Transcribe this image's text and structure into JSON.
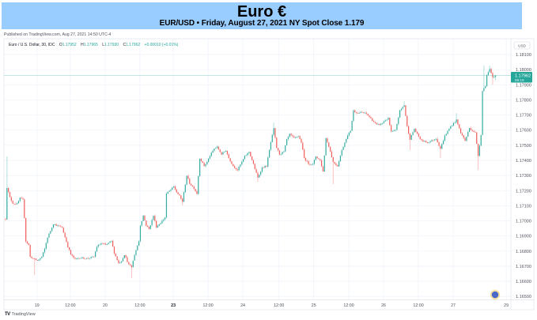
{
  "banner": {
    "title": "Euro €",
    "subtitle": "EUR/USD • Friday, August 27, 2021 NY Spot Close 1.179",
    "bg_color": "#99ccff"
  },
  "published": "Published on TradingView.com, Aug 27, 2021 14:50 UTC-4",
  "legend": {
    "symbol": "Euro / U.S. Dollar, 30, IDC",
    "o_label": "O",
    "o": "1.17952",
    "h_label": "H",
    "h": "1.17965",
    "l_label": "L",
    "l": "1.17930",
    "c_label": "C",
    "c": "1.17962",
    "change": "+0.00010 (+0.01%)"
  },
  "price_axis": {
    "currency": "USD",
    "last_price": "1.17962",
    "countdown": "09:19"
  },
  "footer": {
    "logo_glyph": "TV",
    "logo_text": "TradingView"
  },
  "icons": {
    "realtime_button": "blue-dot-icon"
  },
  "colors": {
    "up": "#26a69a",
    "down": "#ef5350",
    "grid": "#f0f3fa",
    "border": "#e0e3eb",
    "axis_text": "#50535e",
    "banner": "#99ccff"
  },
  "chart_data": {
    "type": "candlestick",
    "title": "Euro €",
    "subtitle": "EUR/USD • Friday, August 27, 2021 NY Spot Close 1.179",
    "symbol": "EUR/USD",
    "interval": "30",
    "xlabel": "",
    "ylabel": "USD",
    "ylim": [
      1.1648,
      1.18205
    ],
    "xlim": [
      -1.09,
      348.6
    ],
    "grid": true,
    "legend_position": "top-left",
    "candle_count": 339,
    "noise": 0.0001,
    "wick": 0.0001,
    "seed": 12345,
    "price_ticks": [
      "1.18100",
      "1.18000",
      "1.17900",
      "1.17800",
      "1.17700",
      "1.17600",
      "1.17500",
      "1.17400",
      "1.17300",
      "1.17200",
      "1.17100",
      "1.17000",
      "1.16900",
      "1.16800",
      "1.16700",
      "1.16600",
      "1.16500"
    ],
    "time_ticks": [
      {
        "label": "19",
        "index": 21.7,
        "bold": false
      },
      {
        "label": "12:00",
        "index": 44.7,
        "bold": false
      },
      {
        "label": "20",
        "index": 68.7,
        "bold": false
      },
      {
        "label": "12:00",
        "index": 92.7,
        "bold": false
      },
      {
        "label": "23",
        "index": 115.7,
        "bold": true
      },
      {
        "label": "12:00",
        "index": 139.7,
        "bold": false
      },
      {
        "label": "24",
        "index": 163.7,
        "bold": false
      },
      {
        "label": "12:00",
        "index": 188.6,
        "bold": false
      },
      {
        "label": "25",
        "index": 212.6,
        "bold": false
      },
      {
        "label": "12:00",
        "index": 236.8,
        "bold": false
      },
      {
        "label": "26",
        "index": 260.8,
        "bold": false
      },
      {
        "label": "12:00",
        "index": 284.8,
        "bold": false
      },
      {
        "label": "27",
        "index": 308.8,
        "bold": false
      },
      {
        "label": "29",
        "index": 345.4,
        "bold": false
      }
    ],
    "path": [
      [
        0,
        1.17013
      ],
      [
        1,
        1.17222
      ],
      [
        3,
        1.17154
      ],
      [
        5,
        1.17117
      ],
      [
        8,
        1.17112
      ],
      [
        10,
        1.17149
      ],
      [
        12,
        1.17138
      ],
      [
        13,
        1.17023
      ],
      [
        14,
        1.16866
      ],
      [
        16,
        1.1684
      ],
      [
        17,
        1.16762
      ],
      [
        20,
        1.16746
      ],
      [
        22,
        1.16736
      ],
      [
        25,
        1.16762
      ],
      [
        27,
        1.16814
      ],
      [
        29,
        1.16892
      ],
      [
        31,
        1.16934
      ],
      [
        33,
        1.16981
      ],
      [
        35,
        1.16971
      ],
      [
        39,
        1.16955
      ],
      [
        41,
        1.16892
      ],
      [
        43,
        1.1683
      ],
      [
        45,
        1.16777
      ],
      [
        48,
        1.16746
      ],
      [
        51,
        1.16757
      ],
      [
        56,
        1.16751
      ],
      [
        61,
        1.16762
      ],
      [
        63,
        1.1683
      ],
      [
        66,
        1.16851
      ],
      [
        69,
        1.1684
      ],
      [
        73,
        1.16866
      ],
      [
        75,
        1.16788
      ],
      [
        78,
        1.1672
      ],
      [
        80,
        1.16736
      ],
      [
        82,
        1.16777
      ],
      [
        85,
        1.1671
      ],
      [
        87,
        1.16694
      ],
      [
        89,
        1.16777
      ],
      [
        92,
        1.16866
      ],
      [
        93,
        1.16971
      ],
      [
        95,
        1.17034
      ],
      [
        97,
        1.16971
      ],
      [
        99,
        1.16945
      ],
      [
        102,
        1.17034
      ],
      [
        104,
        1.1696
      ],
      [
        107,
        1.16987
      ],
      [
        110,
        1.17023
      ],
      [
        111,
        1.1718
      ],
      [
        114,
        1.17206
      ],
      [
        116,
        1.17227
      ],
      [
        118,
        1.1719
      ],
      [
        120,
        1.17164
      ],
      [
        122,
        1.17128
      ],
      [
        125,
        1.173
      ],
      [
        127,
        1.17248
      ],
      [
        130,
        1.17216
      ],
      [
        132,
        1.1718
      ],
      [
        134,
        1.17415
      ],
      [
        137,
        1.17363
      ],
      [
        139,
        1.17389
      ],
      [
        141,
        1.17431
      ],
      [
        144,
        1.17478
      ],
      [
        146,
        1.17488
      ],
      [
        149,
        1.17441
      ],
      [
        152,
        1.17467
      ],
      [
        154,
        1.17415
      ],
      [
        157,
        1.17363
      ],
      [
        160,
        1.17337
      ],
      [
        163,
        1.17389
      ],
      [
        165,
        1.17426
      ],
      [
        168,
        1.17457
      ],
      [
        171,
        1.17374
      ],
      [
        174,
        1.17285
      ],
      [
        177,
        1.17352
      ],
      [
        180,
        1.17363
      ],
      [
        183,
        1.1752
      ],
      [
        185,
        1.17609
      ],
      [
        187,
        1.17483
      ],
      [
        189,
        1.17441
      ],
      [
        192,
        1.17457
      ],
      [
        194,
        1.17535
      ],
      [
        196,
        1.17572
      ],
      [
        199,
        1.17546
      ],
      [
        202,
        1.17562
      ],
      [
        204,
        1.1752
      ],
      [
        206,
        1.17415
      ],
      [
        209,
        1.17379
      ],
      [
        212,
        1.17374
      ],
      [
        214,
        1.17426
      ],
      [
        217,
        1.174
      ],
      [
        219,
        1.17326
      ],
      [
        221,
        1.17546
      ],
      [
        223,
        1.17494
      ],
      [
        226,
        1.17389
      ],
      [
        229,
        1.17363
      ],
      [
        232,
        1.17467
      ],
      [
        235,
        1.17546
      ],
      [
        238,
        1.17598
      ],
      [
        240,
        1.17729
      ],
      [
        243,
        1.17713
      ],
      [
        246,
        1.17718
      ],
      [
        249,
        1.17708
      ],
      [
        253,
        1.17666
      ],
      [
        256,
        1.17635
      ],
      [
        259,
        1.1764
      ],
      [
        262,
        1.17666
      ],
      [
        264,
        1.17677
      ],
      [
        266,
        1.17588
      ],
      [
        269,
        1.17598
      ],
      [
        272,
        1.17729
      ],
      [
        275,
        1.17766
      ],
      [
        277,
        1.17624
      ],
      [
        279,
        1.17541
      ],
      [
        282,
        1.17609
      ],
      [
        284,
        1.17572
      ],
      [
        287,
        1.1753
      ],
      [
        291,
        1.1752
      ],
      [
        294,
        1.1753
      ],
      [
        297,
        1.17546
      ],
      [
        300,
        1.17478
      ],
      [
        303,
        1.17562
      ],
      [
        307,
        1.17624
      ],
      [
        311,
        1.17666
      ],
      [
        314,
        1.17583
      ],
      [
        317,
        1.1753
      ],
      [
        320,
        1.17614
      ],
      [
        324,
        1.17583
      ],
      [
        326,
        1.17431
      ],
      [
        328,
        1.17572
      ],
      [
        329,
        1.17859
      ],
      [
        331,
        1.17896
      ],
      [
        332,
        1.17964
      ],
      [
        334,
        1.18001
      ],
      [
        336,
        1.17948
      ],
      [
        338,
        1.17962
      ]
    ],
    "extremes": [
      {
        "i": 1,
        "high": 1.17426
      },
      {
        "i": 20,
        "low": 1.16642
      },
      {
        "i": 87,
        "low": 1.16621
      },
      {
        "i": 122,
        "low": 1.17102
      },
      {
        "i": 174,
        "low": 1.17258
      },
      {
        "i": 185,
        "high": 1.1765
      },
      {
        "i": 226,
        "low": 1.17243
      },
      {
        "i": 275,
        "high": 1.17792
      },
      {
        "i": 279,
        "low": 1.17467
      },
      {
        "i": 300,
        "low": 1.17415
      },
      {
        "i": 311,
        "high": 1.17713
      },
      {
        "i": 326,
        "low": 1.17337
      },
      {
        "i": 330,
        "high": 1.18027
      },
      {
        "i": 334,
        "high": 1.18027
      },
      {
        "i": 336,
        "low": 1.17901
      }
    ],
    "last_candle": {
      "open": 1.17952,
      "high": 1.17965,
      "low": 1.1793,
      "close": 1.17962
    },
    "last_price": 1.17962
  }
}
